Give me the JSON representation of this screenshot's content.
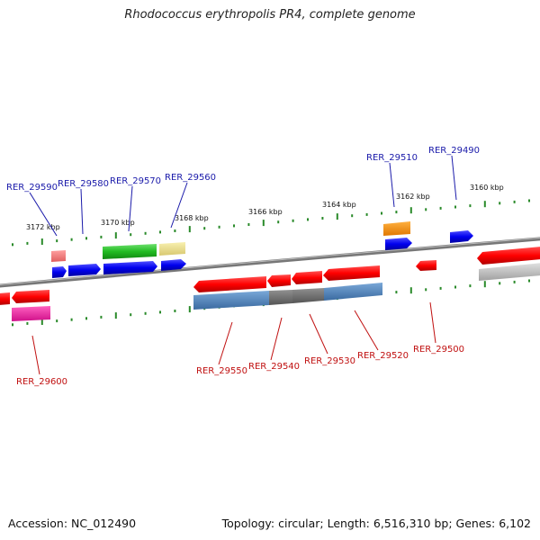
{
  "title": "Rhodococcus erythropolis PR4, complete genome",
  "footer": {
    "accession": "Accession: NC_012490",
    "summary": "Topology: circular; Length: 6,516,310 bp; Genes: 6,102"
  },
  "colors": {
    "backbone": "#8a8a8a",
    "tick": "#2a8a2a",
    "forward_label": "#1a1aaa",
    "reverse_label": "#c01010"
  },
  "kbp_labels": [
    "3172 kbp",
    "3170 kbp",
    "3168 kbp",
    "3166 kbp",
    "3164 kbp",
    "3162 kbp",
    "3160 kbp"
  ],
  "forward_labels": [
    "RER_29590",
    "RER_29580",
    "RER_29570",
    "RER_29560",
    "RER_29510",
    "RER_29490"
  ],
  "reverse_labels": [
    "RER_29600",
    "RER_29550",
    "RER_29540",
    "RER_29530",
    "RER_29520",
    "RER_29500"
  ]
}
